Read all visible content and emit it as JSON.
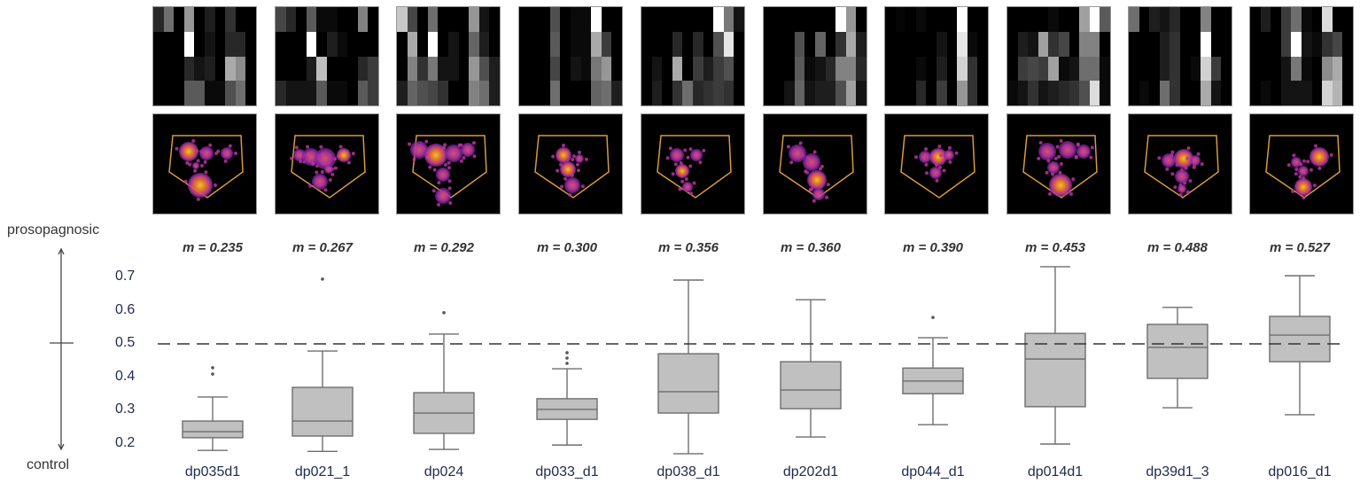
{
  "side_axis": {
    "top_label": "prosopagnosic",
    "bottom_label": "control"
  },
  "chart_data": {
    "type": "box",
    "title": "",
    "xlabel": "",
    "ylabel": "",
    "ylim": [
      0.18,
      0.74
    ],
    "yticks": [
      "0.7",
      "0.6",
      "0.5",
      "0.4",
      "0.3",
      "0.2"
    ],
    "reference_line": {
      "y": 0.5,
      "style": "dashed"
    },
    "grid": false,
    "categories": [
      "dp035d1",
      "dp021_1",
      "dp024",
      "dp033_d1",
      "dp038_d1",
      "dp202d1",
      "dp044_d1",
      "dp014d1",
      "dp39d1_3",
      "dp016_d1"
    ],
    "means": [
      "m = 0.235",
      "m = 0.267",
      "m = 0.292",
      "m = 0.300",
      "m = 0.356",
      "m = 0.360",
      "m = 0.390",
      "m = 0.453",
      "m = 0.488",
      "m = 0.527"
    ],
    "boxes": [
      {
        "name": "dp035d1",
        "whisker_low": 0.181,
        "q1": 0.219,
        "median": 0.237,
        "q3": 0.269,
        "whisker_high": 0.341,
        "outliers": [
          0.41,
          0.429
        ]
      },
      {
        "name": "dp021_1",
        "whisker_low": 0.178,
        "q1": 0.224,
        "median": 0.269,
        "q3": 0.37,
        "whisker_high": 0.479,
        "outliers": [
          0.695
        ]
      },
      {
        "name": "dp024",
        "whisker_low": 0.184,
        "q1": 0.232,
        "median": 0.293,
        "q3": 0.354,
        "whisker_high": 0.53,
        "outliers": [
          0.594
        ]
      },
      {
        "name": "dp033_d1",
        "whisker_low": 0.197,
        "q1": 0.274,
        "median": 0.304,
        "q3": 0.336,
        "whisker_high": 0.426,
        "outliers": [
          0.442,
          0.458,
          0.474
        ]
      },
      {
        "name": "dp038_d1",
        "whisker_low": 0.171,
        "q1": 0.293,
        "median": 0.357,
        "q3": 0.471,
        "whisker_high": 0.692,
        "outliers": []
      },
      {
        "name": "dp202d1",
        "whisker_low": 0.221,
        "q1": 0.306,
        "median": 0.362,
        "q3": 0.447,
        "whisker_high": 0.633,
        "outliers": []
      },
      {
        "name": "dp044_d1",
        "whisker_low": 0.258,
        "q1": 0.351,
        "median": 0.389,
        "q3": 0.428,
        "whisker_high": 0.519,
        "outliers": [
          0.58
        ]
      },
      {
        "name": "dp014d1",
        "whisker_low": 0.2,
        "q1": 0.312,
        "median": 0.455,
        "q3": 0.532,
        "whisker_high": 0.732,
        "outliers": []
      },
      {
        "name": "dp39d1_3",
        "whisker_low": 0.309,
        "q1": 0.397,
        "median": 0.49,
        "q3": 0.559,
        "whisker_high": 0.61,
        "outliers": []
      },
      {
        "name": "dp016_d1",
        "whisker_low": 0.288,
        "q1": 0.447,
        "median": 0.527,
        "q3": 0.583,
        "whisker_high": 0.705,
        "outliers": []
      }
    ],
    "colors": {
      "box_fill": "#c0c0c0",
      "box_stroke": "#6e6e6e",
      "dash": "#333333",
      "heat_bg": "#000000",
      "gaze_outline": "#d99a3a"
    }
  },
  "heatmaps": [
    [
      [
        40,
        110,
        0,
        150,
        0,
        30,
        0,
        50,
        0,
        0
      ],
      [
        0,
        0,
        0,
        255,
        0,
        20,
        0,
        40,
        40,
        0
      ],
      [
        0,
        0,
        0,
        40,
        20,
        30,
        0,
        170,
        140,
        0
      ],
      [
        0,
        0,
        0,
        90,
        90,
        10,
        10,
        80,
        110,
        0
      ]
    ],
    [
      [
        70,
        40,
        0,
        90,
        10,
        10,
        0,
        0,
        130,
        0
      ],
      [
        0,
        0,
        0,
        255,
        0,
        30,
        10,
        0,
        0,
        0
      ],
      [
        0,
        0,
        0,
        30,
        190,
        0,
        0,
        0,
        40,
        60
      ],
      [
        40,
        20,
        20,
        20,
        90,
        10,
        10,
        0,
        90,
        60
      ]
    ],
    [
      [
        200,
        70,
        0,
        110,
        0,
        0,
        0,
        150,
        20,
        0
      ],
      [
        0,
        170,
        0,
        255,
        0,
        20,
        0,
        100,
        30,
        0
      ],
      [
        0,
        130,
        50,
        120,
        20,
        20,
        0,
        150,
        80,
        30
      ],
      [
        30,
        100,
        80,
        70,
        50,
        0,
        0,
        130,
        110,
        30
      ]
    ],
    [
      [
        0,
        0,
        0,
        80,
        0,
        10,
        10,
        255,
        0,
        0
      ],
      [
        0,
        0,
        0,
        90,
        0,
        10,
        10,
        170,
        60,
        0
      ],
      [
        0,
        0,
        0,
        70,
        0,
        20,
        10,
        120,
        150,
        0
      ],
      [
        0,
        0,
        0,
        110,
        0,
        0,
        0,
        100,
        110,
        30
      ]
    ],
    [
      [
        0,
        0,
        0,
        0,
        0,
        0,
        0,
        255,
        120,
        20
      ],
      [
        0,
        0,
        0,
        40,
        0,
        40,
        0,
        80,
        230,
        0
      ],
      [
        0,
        20,
        0,
        170,
        0,
        60,
        30,
        60,
        80,
        0
      ],
      [
        0,
        30,
        0,
        50,
        110,
        40,
        50,
        60,
        50,
        0
      ]
    ],
    [
      [
        0,
        0,
        0,
        0,
        0,
        0,
        0,
        255,
        150,
        0
      ],
      [
        0,
        0,
        0,
        80,
        0,
        100,
        0,
        50,
        170,
        30
      ],
      [
        0,
        0,
        0,
        90,
        10,
        20,
        40,
        130,
        130,
        40
      ],
      [
        0,
        0,
        20,
        100,
        20,
        30,
        30,
        80,
        160,
        20
      ]
    ],
    [
      [
        0,
        5,
        0,
        10,
        0,
        0,
        0,
        255,
        0,
        0
      ],
      [
        0,
        0,
        0,
        0,
        0,
        20,
        0,
        230,
        10,
        0
      ],
      [
        0,
        0,
        0,
        10,
        0,
        30,
        0,
        210,
        50,
        0
      ],
      [
        0,
        0,
        0,
        40,
        0,
        60,
        0,
        150,
        50,
        0
      ]
    ],
    [
      [
        0,
        0,
        0,
        0,
        10,
        0,
        0,
        160,
        255,
        90
      ],
      [
        0,
        30,
        20,
        160,
        50,
        70,
        0,
        130,
        130,
        0
      ],
      [
        0,
        60,
        70,
        60,
        160,
        10,
        20,
        110,
        110,
        10
      ],
      [
        10,
        20,
        50,
        20,
        30,
        40,
        50,
        80,
        220,
        10
      ]
    ],
    [
      [
        110,
        0,
        30,
        20,
        40,
        0,
        0,
        130,
        0,
        0
      ],
      [
        0,
        0,
        0,
        30,
        50,
        0,
        0,
        255,
        0,
        0
      ],
      [
        0,
        0,
        0,
        30,
        50,
        0,
        10,
        210,
        60,
        0
      ],
      [
        0,
        10,
        0,
        110,
        50,
        0,
        0,
        170,
        20,
        0
      ]
    ],
    [
      [
        0,
        30,
        0,
        60,
        110,
        10,
        0,
        220,
        0,
        0
      ],
      [
        0,
        0,
        0,
        60,
        255,
        20,
        10,
        50,
        70,
        0
      ],
      [
        0,
        0,
        0,
        20,
        120,
        10,
        0,
        140,
        170,
        0
      ],
      [
        0,
        10,
        0,
        20,
        20,
        20,
        0,
        210,
        180,
        0
      ]
    ]
  ],
  "gaze_plots": [
    {
      "clusters": [
        [
          40,
          42,
          11,
          0.9
        ],
        [
          60,
          44,
          8,
          0.5
        ],
        [
          83,
          44,
          7,
          0.5
        ],
        [
          53,
          80,
          14,
          0.85
        ],
        [
          48,
          58,
          4,
          0.4
        ]
      ]
    },
    {
      "clusters": [
        [
          27,
          46,
          7,
          0.7
        ],
        [
          40,
          48,
          10,
          0.45
        ],
        [
          56,
          50,
          12,
          0.45
        ],
        [
          77,
          46,
          8,
          0.75
        ],
        [
          50,
          76,
          9,
          0.55
        ],
        [
          60,
          62,
          5,
          0.35
        ]
      ]
    },
    {
      "clusters": [
        [
          25,
          40,
          10,
          0.5
        ],
        [
          44,
          46,
          13,
          0.85
        ],
        [
          64,
          44,
          10,
          0.5
        ],
        [
          80,
          40,
          8,
          0.4
        ],
        [
          52,
          68,
          8,
          0.5
        ],
        [
          52,
          92,
          9,
          0.5
        ]
      ]
    },
    {
      "clusters": [
        [
          50,
          46,
          9,
          0.75
        ],
        [
          55,
          62,
          9,
          0.85
        ],
        [
          60,
          80,
          9,
          0.55
        ],
        [
          68,
          50,
          5,
          0.35
        ]
      ]
    },
    {
      "clusters": [
        [
          40,
          46,
          8,
          0.55
        ],
        [
          62,
          46,
          7,
          0.45
        ],
        [
          46,
          64,
          8,
          0.8
        ],
        [
          52,
          82,
          6,
          0.55
        ]
      ]
    },
    {
      "clusters": [
        [
          38,
          44,
          10,
          0.5
        ],
        [
          54,
          54,
          10,
          0.6
        ],
        [
          60,
          74,
          11,
          0.9
        ],
        [
          62,
          90,
          7,
          0.6
        ]
      ]
    },
    {
      "clusters": [
        [
          45,
          48,
          7,
          0.6
        ],
        [
          60,
          48,
          10,
          0.85
        ],
        [
          72,
          46,
          6,
          0.4
        ],
        [
          57,
          66,
          7,
          0.6
        ]
      ]
    },
    {
      "clusters": [
        [
          45,
          42,
          10,
          0.6
        ],
        [
          68,
          40,
          10,
          0.5
        ],
        [
          86,
          42,
          8,
          0.45
        ],
        [
          52,
          60,
          7,
          0.5
        ],
        [
          60,
          80,
          13,
          0.85
        ]
      ]
    },
    {
      "clusters": [
        [
          45,
          52,
          8,
          0.6
        ],
        [
          62,
          50,
          11,
          0.8
        ],
        [
          75,
          52,
          6,
          0.5
        ],
        [
          60,
          70,
          8,
          0.55
        ],
        [
          60,
          84,
          5,
          0.45
        ]
      ]
    },
    {
      "clusters": [
        [
          52,
          54,
          6,
          0.5
        ],
        [
          78,
          48,
          11,
          1.0
        ],
        [
          60,
          64,
          6,
          0.45
        ],
        [
          60,
          82,
          10,
          0.85
        ]
      ]
    }
  ]
}
